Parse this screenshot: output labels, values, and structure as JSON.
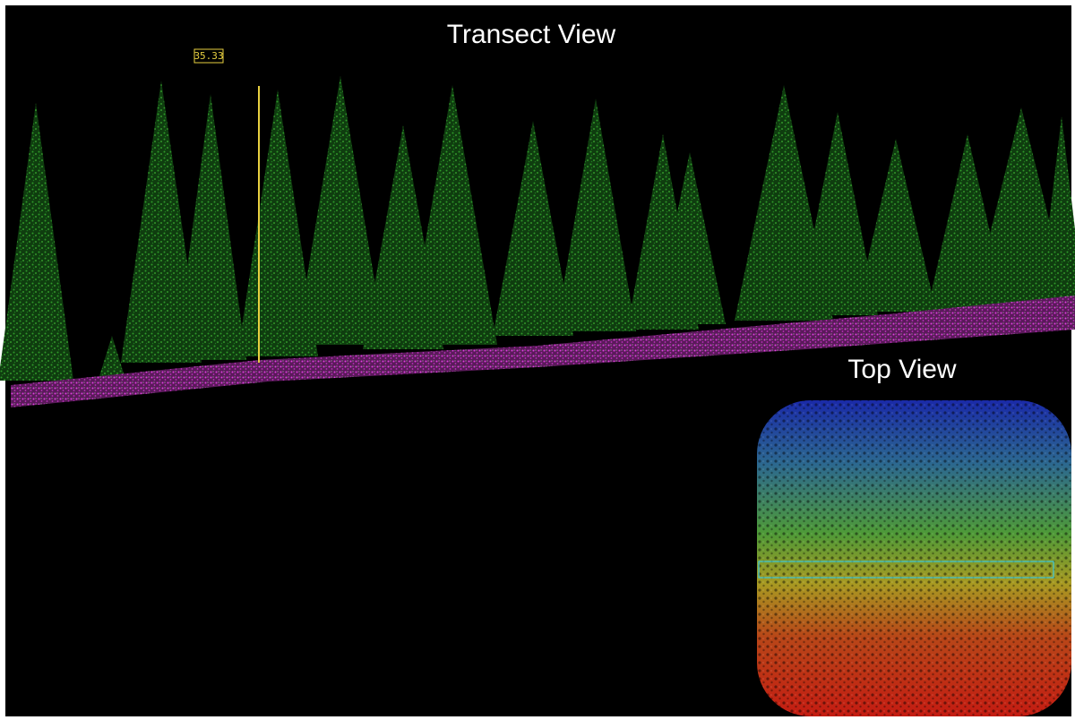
{
  "transect_view": {
    "title": "Transect View",
    "height_label": "35.33"
  },
  "top_view": {
    "title": "Top View"
  }
}
